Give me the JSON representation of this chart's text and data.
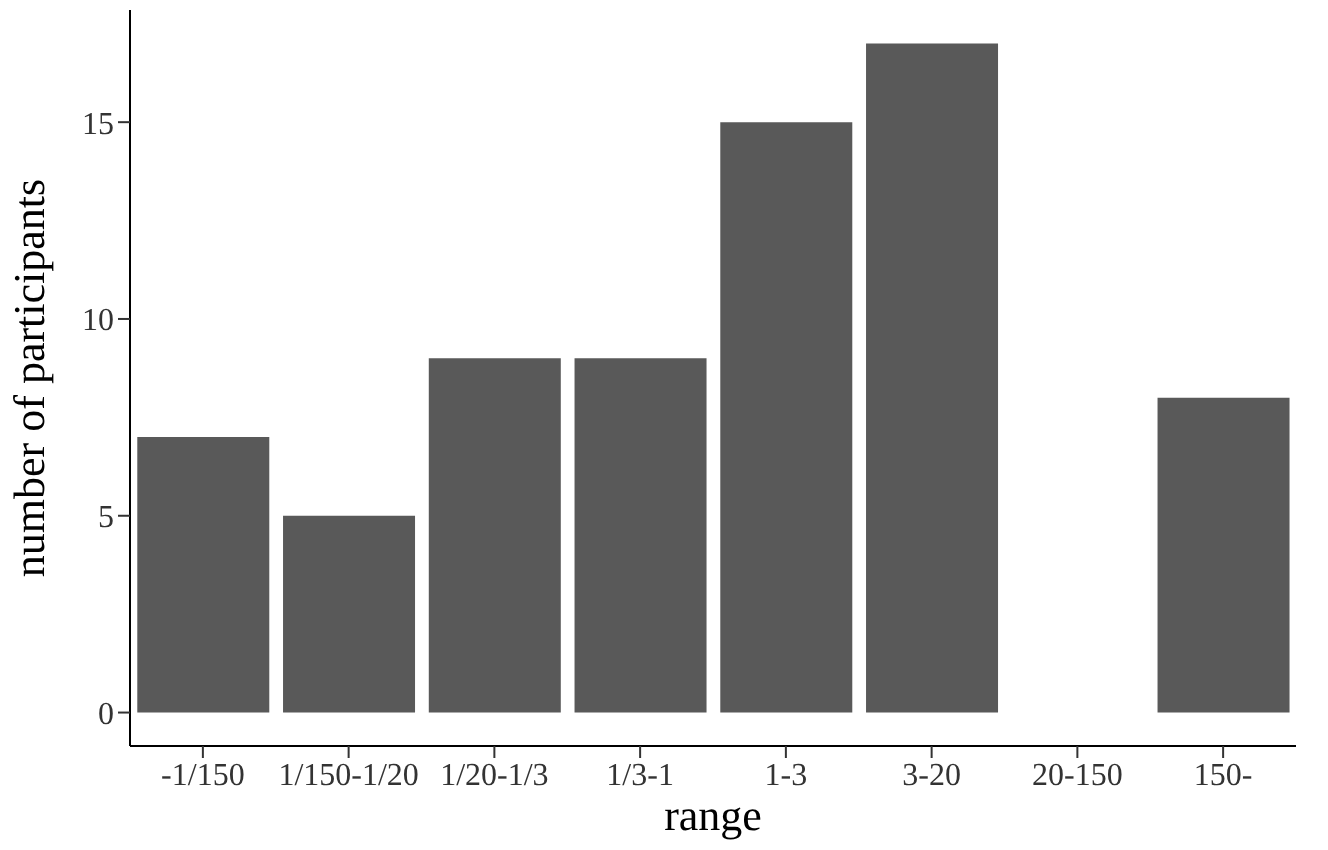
{
  "chart_data": {
    "type": "bar",
    "xlabel": "range",
    "ylabel": "number of participants",
    "categories": [
      "-1/150",
      "1/150-1/20",
      "1/20-1/3",
      "1/3-1",
      "1-3",
      "3-20",
      "20-150",
      "150-"
    ],
    "values": [
      7,
      5,
      9,
      9,
      15,
      17,
      0,
      8
    ],
    "color": "#595959",
    "ylim": [
      -0.85,
      17.85
    ],
    "yticks": [
      0,
      5,
      10,
      15
    ],
    "grid": false
  }
}
